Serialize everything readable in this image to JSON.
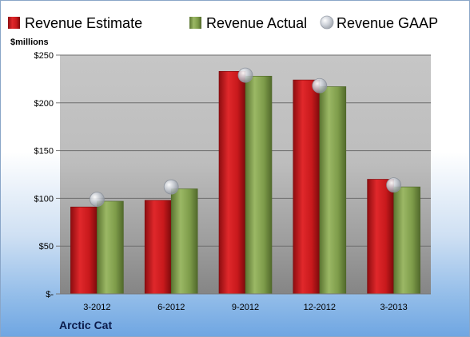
{
  "chart_data": {
    "type": "bar",
    "unit_label": "$millions",
    "categories": [
      "3-2012",
      "6-2012",
      "9-2012",
      "12-2012",
      "3-2013"
    ],
    "series": [
      {
        "name": "Revenue Estimate",
        "type": "bar",
        "color": "#c8191c",
        "values": [
          91,
          98,
          233,
          224,
          120
        ]
      },
      {
        "name": "Revenue Actual",
        "type": "bar",
        "color": "#7e9c4a",
        "values": [
          97,
          110,
          228,
          217,
          112
        ]
      },
      {
        "name": "Revenue GAAP",
        "type": "marker",
        "color": "#b9bec6",
        "values": [
          99,
          112,
          229,
          218,
          114
        ]
      }
    ],
    "ylim": [
      0,
      250
    ],
    "yticks": [
      0,
      50,
      100,
      150,
      200,
      250
    ],
    "ytick_labels": [
      "$-",
      "$50",
      "$100",
      "$150",
      "$200",
      "$250"
    ],
    "legend_position": "top",
    "grid": true
  },
  "footer": {
    "company": "Arctic Cat"
  }
}
